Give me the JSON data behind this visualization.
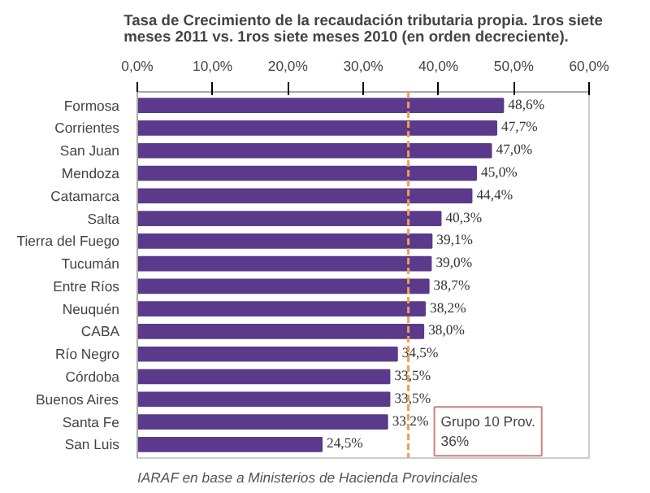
{
  "chart_data": {
    "type": "bar",
    "orientation": "horizontal",
    "title": "Tasa de Crecimiento de la recaudación tributaria propia. 1ros siete meses 2011 vs. 1ros siete meses 2010 (en orden decreciente).",
    "categories": [
      "Formosa",
      "Corrientes",
      "San Juan",
      "Mendoza",
      "Catamarca",
      "Salta",
      "Tierra del Fuego",
      "Tucumán",
      "Entre Ríos",
      "Neuquén",
      "CABA",
      "Río Negro",
      "Córdoba",
      "Buenos Aires",
      "Santa Fe",
      "San Luis"
    ],
    "values": [
      48.6,
      47.7,
      47.0,
      45.0,
      44.4,
      40.3,
      39.1,
      39.0,
      38.7,
      38.2,
      38.0,
      34.5,
      33.5,
      33.5,
      33.2,
      24.5
    ],
    "value_labels": [
      "48,6%",
      "47,7%",
      "47,0%",
      "45,0%",
      "44,4%",
      "40,3%",
      "39,1%",
      "39,0%",
      "38,7%",
      "38,2%",
      "38,0%",
      "34,5%",
      "33,5%",
      "33,5%",
      "33,2%",
      "24,5%"
    ],
    "color": "#5b3a8c",
    "xlim": [
      0,
      60
    ],
    "xticks": [
      {
        "value": 0,
        "label": "0,0%"
      },
      {
        "value": 10,
        "label": "10,0%"
      },
      {
        "value": 20,
        "label": "20,0%"
      },
      {
        "value": 30,
        "label": "30,0%"
      },
      {
        "value": 40,
        "label": "40,0%"
      },
      {
        "value": 50,
        "label": "50,0%"
      },
      {
        "value": 60,
        "label": "60,0%"
      }
    ],
    "ref_lines": [
      {
        "axis": "x",
        "value": 36,
        "label": "Grupo 10 Prov.\n36%",
        "color": "#f0a050",
        "line_style": "dashed"
      }
    ],
    "annotations": [
      "IARAF en base a Ministerios de Hacienda Provinciales"
    ],
    "grid": false
  }
}
